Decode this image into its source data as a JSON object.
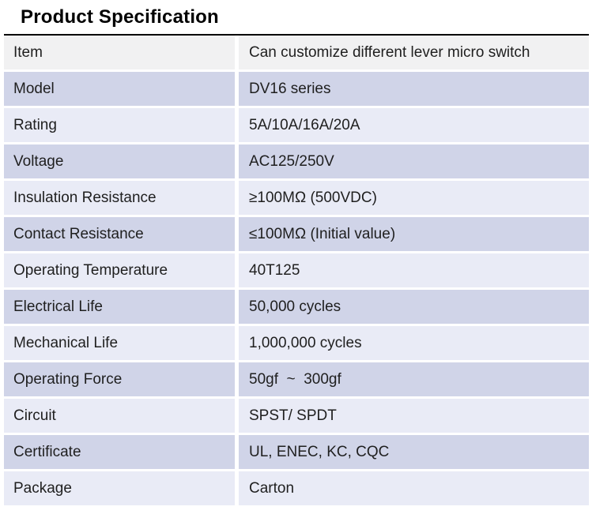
{
  "page": {
    "title": "Product Specification"
  },
  "colors": {
    "title_text": "#000000",
    "table_top_border": "#000000",
    "row_header_bg": "#f1f1f2",
    "row_medium_bg": "#d0d4e8",
    "row_light_bg": "#e9ebf6",
    "separator": "#ffffff",
    "cell_text": "#1f1f1f"
  },
  "spec_table": {
    "rows": [
      {
        "label": "Item",
        "value": "Can customize different lever micro switch",
        "shade": "header"
      },
      {
        "label": "Model",
        "value": "DV16 series",
        "shade": "medium"
      },
      {
        "label": "Rating",
        "value": "5A/10A/16A/20A",
        "shade": "light"
      },
      {
        "label": "Voltage",
        "value": "AC125/250V",
        "shade": "medium"
      },
      {
        "label": "Insulation Resistance",
        "value": "≥100MΩ (500VDC)",
        "shade": "light"
      },
      {
        "label": "Contact Resistance",
        "value": "≤100MΩ (Initial value)",
        "shade": "medium"
      },
      {
        "label": "Operating Temperature",
        "value": "40T125",
        "shade": "light"
      },
      {
        "label": "Electrical Life",
        "value": "50,000 cycles",
        "shade": "medium"
      },
      {
        "label": "Mechanical Life",
        "value": "1,000,000 cycles",
        "shade": "light"
      },
      {
        "label": "Operating Force",
        "value": "50gf  ~  300gf",
        "shade": "medium"
      },
      {
        "label": "Circuit",
        "value": "SPST/ SPDT",
        "shade": "light"
      },
      {
        "label": "Certificate",
        "value": "UL, ENEC, KC, CQC",
        "shade": "medium"
      },
      {
        "label": "Package",
        "value": "Carton",
        "shade": "light"
      }
    ]
  }
}
